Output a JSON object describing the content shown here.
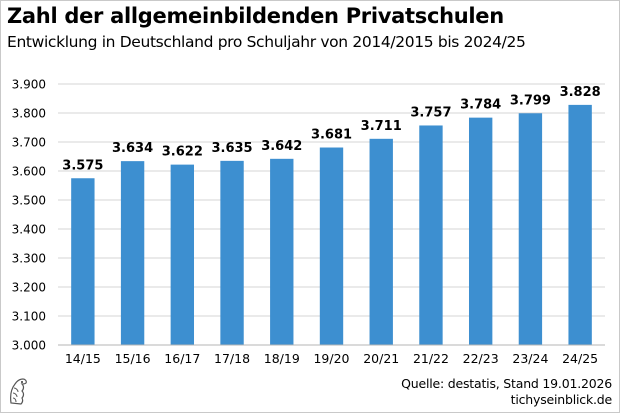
{
  "header": {
    "title": "Zahl der allgemeinbildenden Privatschulen",
    "subtitle": "Entwicklung in Deutschland pro Schuljahr von 2014/2015 bis 2024/25"
  },
  "footer": {
    "source": "Quelle: destatis, Stand 19.01.2026",
    "site": "tichyseinblick.de",
    "logo_icon": "eagle-head-icon"
  },
  "colors": {
    "bar": "#3d8fd0",
    "grid": "#d4d4d4",
    "text": "#000000"
  },
  "chart_data": {
    "type": "bar",
    "title": "Zahl der allgemeinbildenden Privatschulen",
    "subtitle": "Entwicklung in Deutschland pro Schuljahr von 2014/2015 bis 2024/25",
    "xlabel": "",
    "ylabel": "",
    "categories": [
      "14/15",
      "15/16",
      "16/17",
      "17/18",
      "18/19",
      "19/20",
      "20/21",
      "21/22",
      "22/23",
      "23/24",
      "24/25"
    ],
    "values": [
      3575,
      3634,
      3622,
      3635,
      3642,
      3681,
      3711,
      3757,
      3784,
      3799,
      3828
    ],
    "value_labels": [
      "3.575",
      "3.634",
      "3.622",
      "3.635",
      "3.642",
      "3.681",
      "3.711",
      "3.757",
      "3.784",
      "3.799",
      "3.828"
    ],
    "ylim": [
      3000,
      3900
    ],
    "yticks": [
      3000,
      3100,
      3200,
      3300,
      3400,
      3500,
      3600,
      3700,
      3800,
      3900
    ],
    "ytick_labels": [
      "3.000",
      "3.100",
      "3.200",
      "3.300",
      "3.400",
      "3.500",
      "3.600",
      "3.700",
      "3.800",
      "3.900"
    ],
    "grid": true,
    "legend": "none"
  }
}
